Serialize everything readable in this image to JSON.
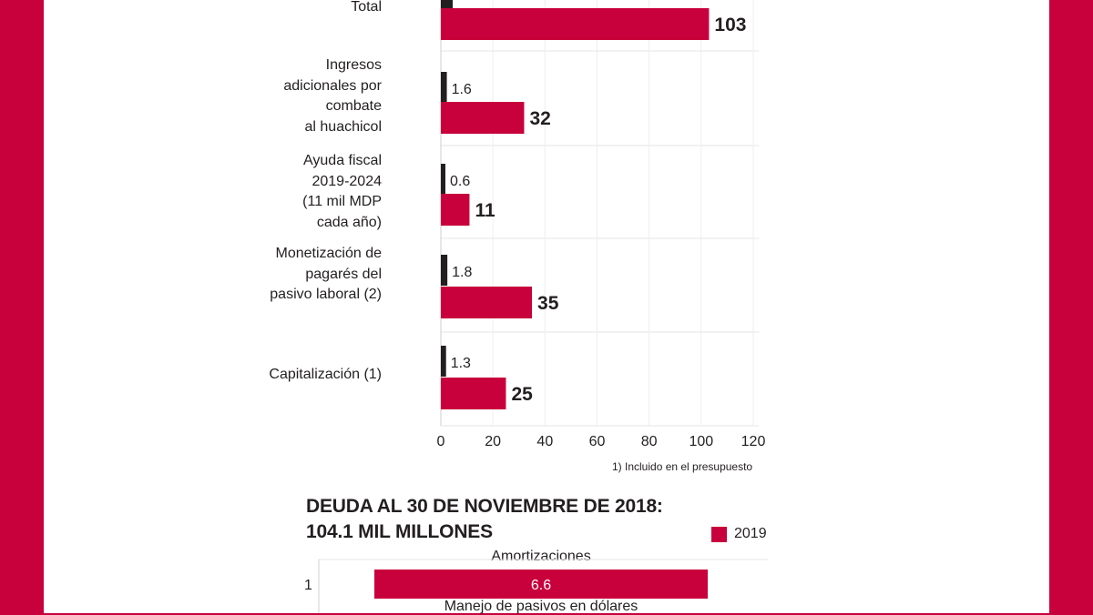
{
  "chart_data": [
    {
      "type": "bar",
      "orientation": "horizontal",
      "categories": [
        "Total",
        "Ingresos\nadicionales por\ncombate\nal huachicol",
        "Ayuda fiscal\n2019-2024\n(11 mil MDP\ncada año)",
        "Monetización de\npagarés del\npasivo laboral (2)",
        "Capitalización (1)"
      ],
      "series": [
        {
          "name": "dark",
          "color": "#231f20",
          "values": [
            null,
            1.6,
            0.6,
            1.8,
            1.3
          ],
          "labels": [
            "",
            "1.6",
            "0.6",
            "1.8",
            "1.3"
          ]
        },
        {
          "name": "red",
          "color": "#c8003c",
          "values": [
            103,
            32,
            11,
            35,
            25
          ],
          "labels": [
            "103",
            "32",
            "11",
            "35",
            "25"
          ]
        }
      ],
      "xticks": [
        0,
        20,
        40,
        60,
        80,
        100,
        120
      ],
      "xlim": [
        0,
        120
      ],
      "grid": true,
      "footnote": "1) Incluido en el presupuesto"
    },
    {
      "type": "bar",
      "orientation": "horizontal",
      "title_line1": "DEUDA AL 30 DE NOVIEMBRE DE 2018:",
      "title_line2": "104.1 MIL MILLONES",
      "legend": [
        {
          "label": "2019",
          "color": "#c8003c"
        }
      ],
      "row_label": "1",
      "bars": [
        {
          "name": "Amortizaciones",
          "value": 6.6,
          "label": "6.6"
        }
      ],
      "next_label": "Manejo de pasivos en dólares"
    }
  ]
}
